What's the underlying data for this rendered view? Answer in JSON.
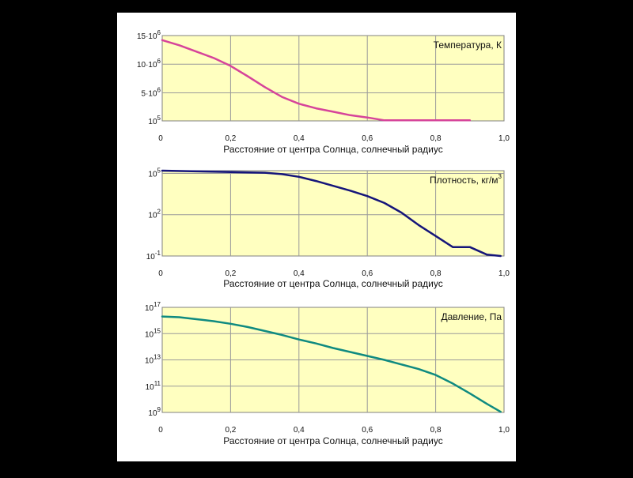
{
  "chart_data": [
    {
      "type": "line",
      "title": "Температура, К",
      "xlabel": "Расстояние от центра Солнца, солнечный радиус",
      "xlim": [
        0,
        1.0
      ],
      "x_ticks": [
        "0",
        "0,2",
        "0,4",
        "0,6",
        "0,8",
        "1,0"
      ],
      "y_scale": "linear",
      "ylim": [
        100000,
        15000000
      ],
      "y_ticks": [
        {
          "value": 15000000,
          "base": "15·10",
          "exp": "6"
        },
        {
          "value": 10000000,
          "base": "10·10",
          "exp": "6"
        },
        {
          "value": 5000000,
          "base": "5·10",
          "exp": "6"
        },
        {
          "value": 100000,
          "base": "10",
          "exp": "5"
        }
      ],
      "grid": true,
      "legend": "top-right",
      "color": "#d6449a",
      "series": [
        {
          "name": "Температура, К",
          "x": [
            0,
            0.05,
            0.1,
            0.15,
            0.2,
            0.25,
            0.3,
            0.35,
            0.4,
            0.45,
            0.5,
            0.55,
            0.6,
            0.65,
            0.7,
            0.8,
            0.9
          ],
          "y": [
            14200000,
            13300000,
            12200000,
            11100000,
            9700000,
            7900000,
            6000000,
            4300000,
            3100000,
            2300000,
            1700000,
            1100000,
            700000,
            200000,
            200000,
            200000,
            200000
          ]
        }
      ]
    },
    {
      "type": "line",
      "title": "Плотность, кг/м",
      "title_sup": "3",
      "xlabel": "Расстояние от центра Солнца, солнечный радиус",
      "xlim": [
        0,
        1.0
      ],
      "x_ticks": [
        "0",
        "0,2",
        "0,4",
        "0,6",
        "0,8",
        "1,0"
      ],
      "y_scale": "log",
      "ylim": [
        -1,
        5.2
      ],
      "y_ticks": [
        {
          "value": 5,
          "base": "10",
          "exp": "5"
        },
        {
          "value": 2,
          "base": "10",
          "exp": "2"
        },
        {
          "value": -1,
          "base": "10",
          "exp": "-1"
        }
      ],
      "grid": true,
      "legend": "top-right",
      "color": "#15157a",
      "series": [
        {
          "name": "Плотность, кг/м3",
          "x": [
            0,
            0.1,
            0.2,
            0.3,
            0.35,
            0.4,
            0.45,
            0.5,
            0.55,
            0.6,
            0.65,
            0.7,
            0.75,
            0.8,
            0.85,
            0.9,
            0.95,
            0.99
          ],
          "y": [
            5.2,
            5.15,
            5.1,
            5.05,
            4.95,
            4.75,
            4.45,
            4.1,
            3.75,
            3.35,
            2.85,
            2.15,
            1.25,
            0.45,
            -0.35,
            -0.35,
            -0.9,
            -1.0
          ]
        }
      ]
    },
    {
      "type": "line",
      "title": "Давление, Па",
      "xlabel": "Расстояние от центра Солнца, солнечный радиус",
      "xlim": [
        0,
        1.0
      ],
      "x_ticks": [
        "0",
        "0,2",
        "0,4",
        "0,6",
        "0,8",
        "1,0"
      ],
      "y_scale": "log",
      "ylim": [
        9,
        17
      ],
      "y_ticks": [
        {
          "value": 17,
          "base": "10",
          "exp": "17"
        },
        {
          "value": 15,
          "base": "10",
          "exp": "15"
        },
        {
          "value": 13,
          "base": "10",
          "exp": "13"
        },
        {
          "value": 11,
          "base": "10",
          "exp": "11"
        },
        {
          "value": 9,
          "base": "10",
          "exp": "9"
        }
      ],
      "grid": true,
      "legend": "top-right",
      "color": "#0f8a80",
      "series": [
        {
          "name": "Давление, Па",
          "x": [
            0,
            0.05,
            0.1,
            0.15,
            0.2,
            0.25,
            0.3,
            0.35,
            0.4,
            0.45,
            0.5,
            0.55,
            0.6,
            0.65,
            0.7,
            0.75,
            0.8,
            0.85,
            0.9,
            0.95,
            0.99
          ],
          "y": [
            16.3,
            16.25,
            16.1,
            15.95,
            15.75,
            15.5,
            15.2,
            14.9,
            14.55,
            14.25,
            13.9,
            13.6,
            13.3,
            13.0,
            12.65,
            12.3,
            11.85,
            11.2,
            10.45,
            9.65,
            9.05
          ]
        }
      ]
    }
  ]
}
